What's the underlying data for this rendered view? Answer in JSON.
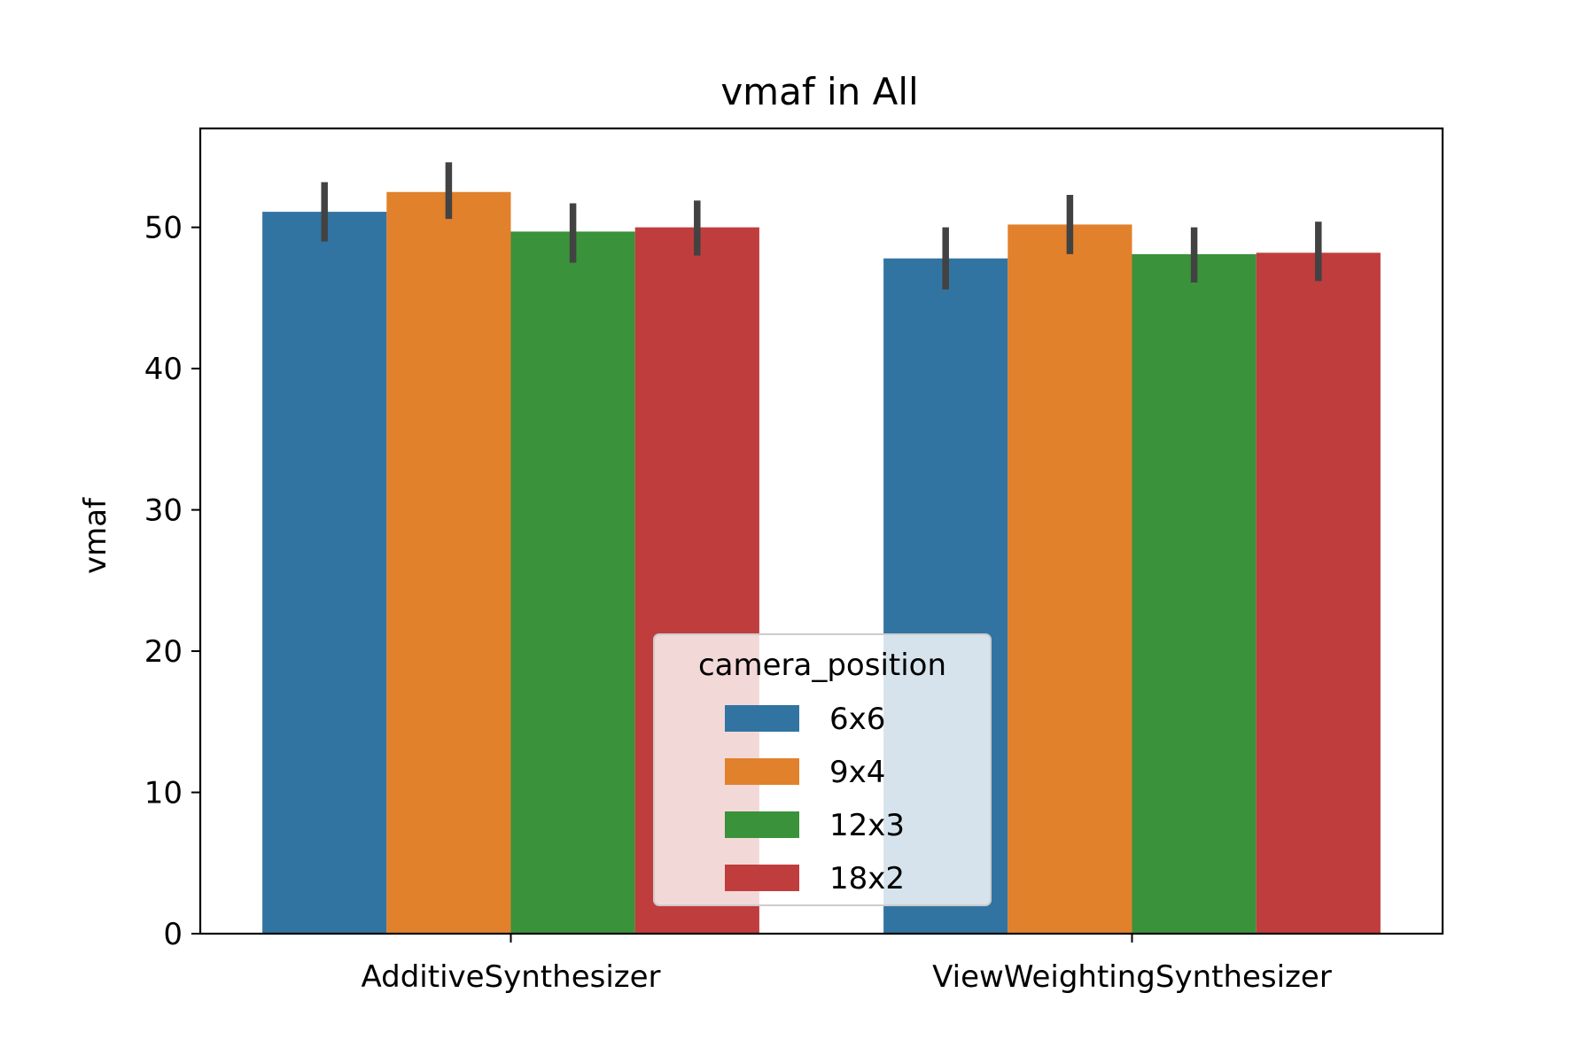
{
  "chart_data": {
    "type": "bar",
    "title": "vmaf in All",
    "xlabel": "",
    "ylabel": "vmaf",
    "ylim": [
      0,
      57
    ],
    "yticks": [
      0,
      10,
      20,
      30,
      40,
      50
    ],
    "categories": [
      "AdditiveSynthesizer",
      "ViewWeightingSynthesizer"
    ],
    "legend": {
      "title": "camera_position",
      "placement": "lower center"
    },
    "series": [
      {
        "name": "6x6",
        "color": "#3274a1",
        "values": [
          51.1,
          47.8
        ],
        "ci": [
          [
            49.0,
            53.2
          ],
          [
            45.6,
            50.0
          ]
        ]
      },
      {
        "name": "9x4",
        "color": "#e1812c",
        "values": [
          52.5,
          50.2
        ],
        "ci": [
          [
            50.6,
            54.6
          ],
          [
            48.1,
            52.3
          ]
        ]
      },
      {
        "name": "12x3",
        "color": "#3a923a",
        "values": [
          49.7,
          48.1
        ],
        "ci": [
          [
            47.5,
            51.7
          ],
          [
            46.1,
            50.0
          ]
        ]
      },
      {
        "name": "18x2",
        "color": "#c03d3e",
        "values": [
          50.0,
          48.2
        ],
        "ci": [
          [
            48.0,
            51.9
          ],
          [
            46.2,
            50.4
          ]
        ]
      }
    ],
    "grid": false
  }
}
